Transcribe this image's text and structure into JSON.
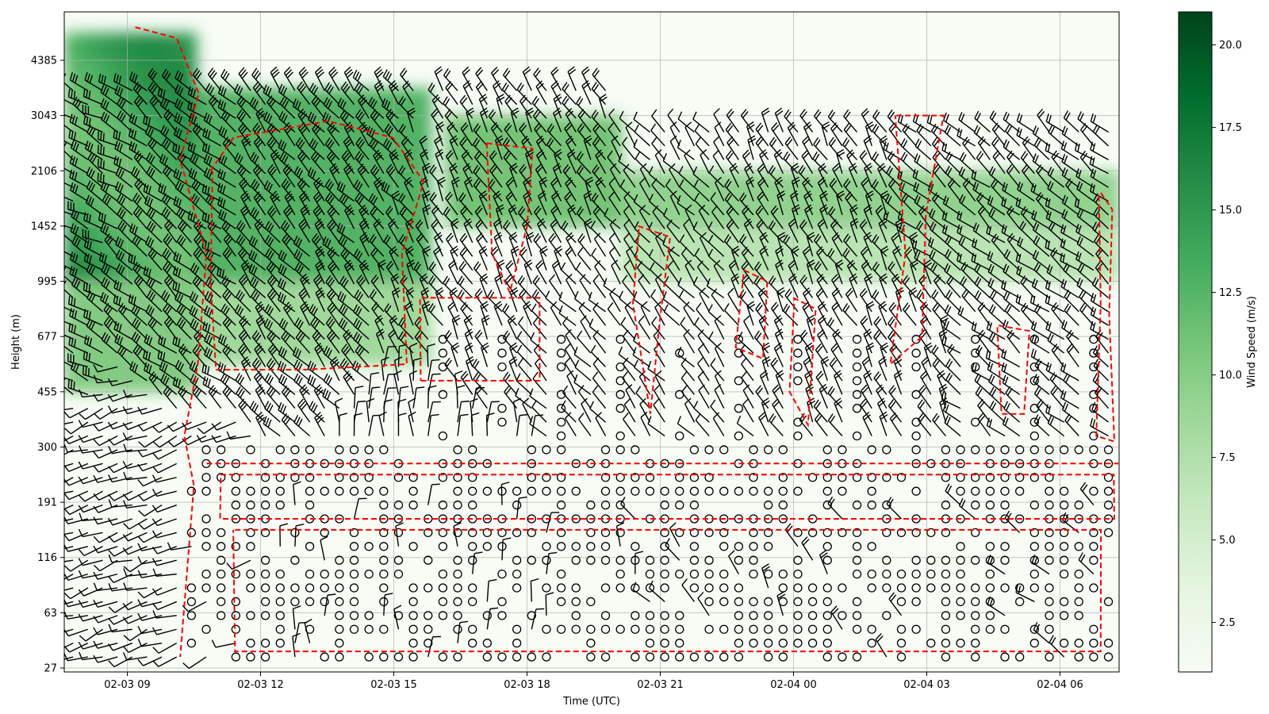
{
  "chart_data": {
    "type": "heatmap",
    "xlabel": "Time (UTC)",
    "ylabel": "Height (m)",
    "x_ticks": [
      "02-03 09",
      "02-03 12",
      "02-03 15",
      "02-03 18",
      "02-03 21",
      "02-04 00",
      "02-04 03",
      "02-04 06"
    ],
    "x_range": [
      "02-03 07:35",
      "02-04 07:20"
    ],
    "y_ticks": [
      27,
      63,
      116,
      191,
      300,
      455,
      677,
      995,
      1452,
      2106,
      3043,
      4385
    ],
    "y_scale": "categorical (irregular height levels)",
    "grid": true,
    "colorbar": {
      "label": "Wind Speed (m/s)",
      "ticks": [
        2.5,
        5.0,
        7.5,
        10.0,
        12.5,
        15.0,
        17.5,
        20.0
      ],
      "range": [
        1,
        21
      ],
      "colormap": "Greens"
    },
    "overlays": [
      "wind barbs (black)",
      "calm markers (open circles)",
      "dashed contour (red)"
    ],
    "wind_field_summary": [
      {
        "time": "02-03 08",
        "height_band_m": "995-4385",
        "speed_ms": 14,
        "dir_deg": 300
      },
      {
        "time": "02-03 10",
        "height_band_m": "995-3043",
        "speed_ms": 15,
        "dir_deg": 310
      },
      {
        "time": "02-03 13",
        "height_band_m": "995-3043",
        "speed_ms": 13,
        "dir_deg": 320
      },
      {
        "time": "02-03 17",
        "height_band_m": "995-2106",
        "speed_ms": 10,
        "dir_deg": 330
      },
      {
        "time": "02-03 21",
        "height_band_m": "300-1452",
        "speed_ms": 7,
        "dir_deg": 320
      },
      {
        "time": "02-04 01",
        "height_band_m": "300-2106",
        "speed_ms": 8,
        "dir_deg": 330
      },
      {
        "time": "02-04 05",
        "height_band_m": "995-2106",
        "speed_ms": 9,
        "dir_deg": 310
      },
      {
        "time": "02-03 09",
        "height_band_m": "27-191",
        "speed_ms": 4,
        "dir_deg": 250
      },
      {
        "time": "02-03 16",
        "height_band_m": "27-300",
        "speed_ms": 0,
        "dir_deg": 0
      }
    ]
  },
  "colors": {
    "colormap_low": "#f7fcf5",
    "colormap_mid": "#74c476",
    "colormap_high": "#00441b",
    "contour": "#ff0000",
    "barb": "#000000",
    "grid": "#b0b0b0"
  }
}
